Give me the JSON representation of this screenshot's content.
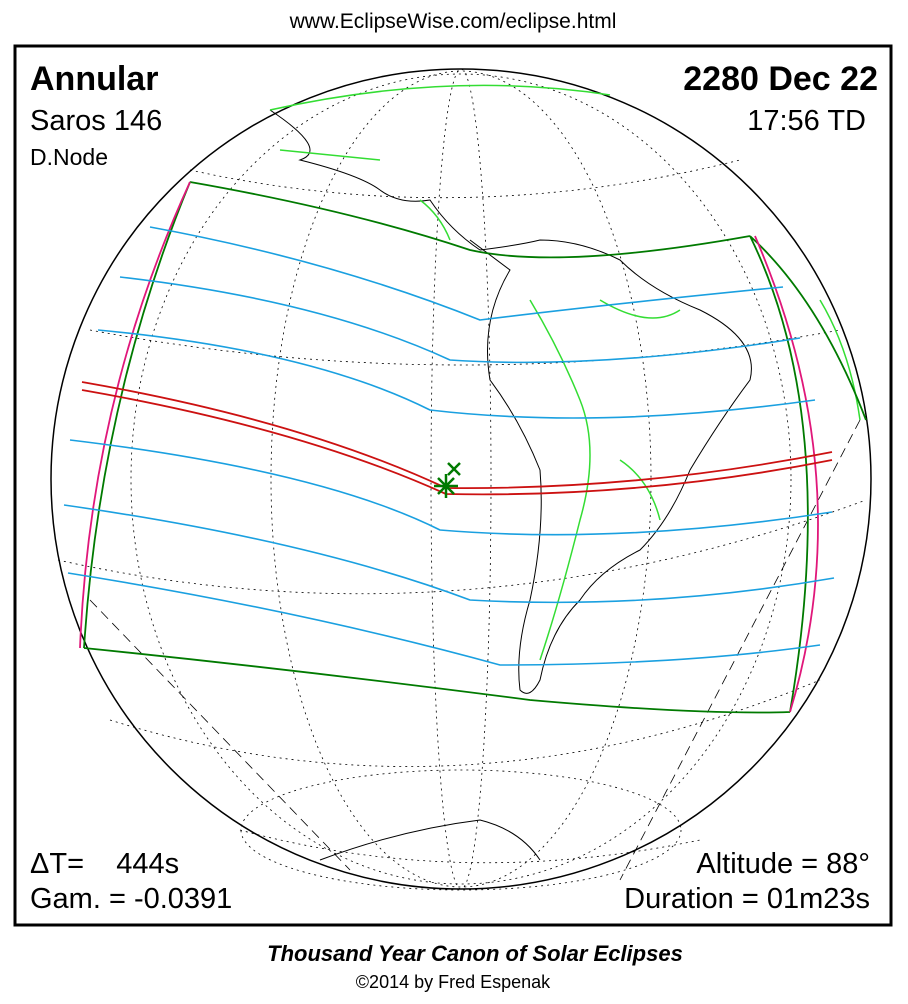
{
  "header": {
    "url": "www.EclipseWise.com/eclipse.html"
  },
  "eclipse": {
    "type": "Annular",
    "saros": "Saros 146",
    "node": "D.Node",
    "date": "2280 Dec 22",
    "time": "17:56 TD",
    "delta_t": "ΔT=    444s",
    "gamma": "Gam. = -0.0391",
    "altitude": "Altitude = 88°",
    "duration": "Duration = 01m23s"
  },
  "footer": {
    "title": "Thousand Year Canon of Solar Eclipses",
    "copyright": "©2014 by Fred Espenak"
  }
}
